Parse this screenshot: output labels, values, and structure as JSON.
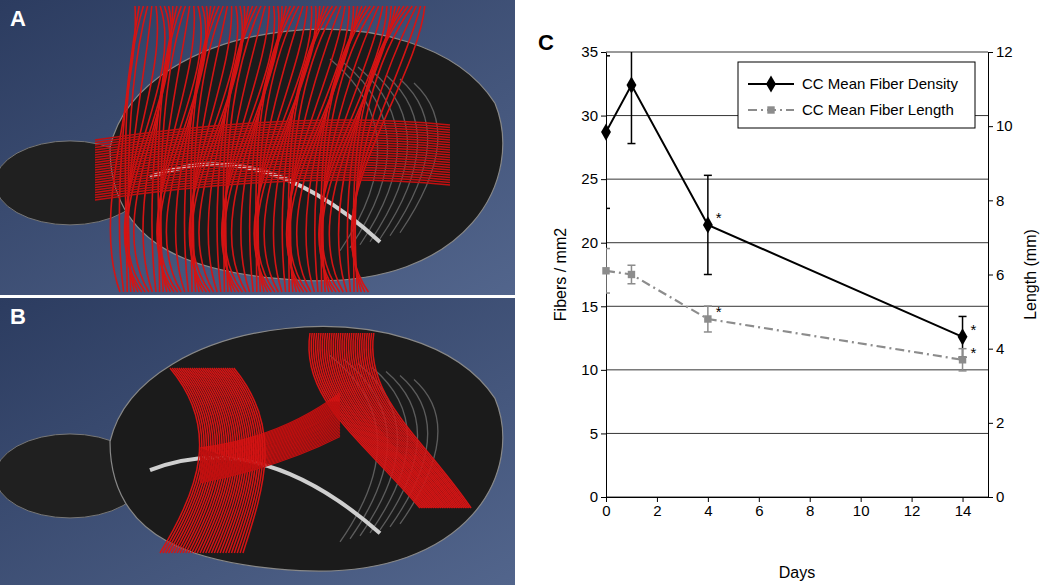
{
  "panel_labels": [
    "A",
    "B",
    "C"
  ],
  "chart_data": {
    "type": "line",
    "x_label": "Days",
    "y_label": "Fibers / mm2",
    "y2_label": "Length (mm)",
    "x": [
      0,
      1,
      4,
      14
    ],
    "xlim": [
      0,
      15
    ],
    "xticks": [
      0,
      2,
      4,
      6,
      8,
      10,
      12,
      14
    ],
    "ylim": [
      0,
      35
    ],
    "yticks": [
      0,
      5,
      10,
      15,
      20,
      25,
      30,
      35
    ],
    "y2lim": [
      0,
      12
    ],
    "y2ticks": [
      0,
      2,
      4,
      6,
      8,
      10,
      12
    ],
    "grid": true,
    "legend": "top-right",
    "series": [
      {
        "name": "CC Mean Fiber Density",
        "color": "#000000",
        "marker": "diamond",
        "line_style": "solid",
        "values": [
          28.7,
          32.4,
          21.4,
          12.6
        ],
        "errors": [
          6.0,
          4.6,
          3.9,
          1.6
        ],
        "significance": [
          null,
          null,
          "*",
          "*"
        ]
      },
      {
        "name": "CC Mean Fiber Length",
        "color": "#8c8c8c",
        "marker": "square",
        "line_style": "dashdot",
        "axis": "y2",
        "values": [
          6.1,
          6.0,
          4.8,
          3.7
        ],
        "errors": [
          0.6,
          0.25,
          0.35,
          0.3
        ],
        "significance": [
          null,
          null,
          "*",
          "*"
        ]
      }
    ]
  }
}
